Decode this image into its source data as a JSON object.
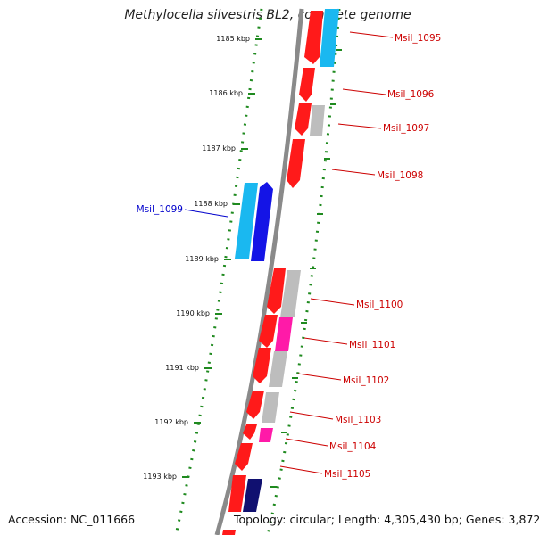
{
  "title": "Methylocella silvestris BL2, complete genome",
  "footer": {
    "accession": "Accession: NC_011666",
    "topology": "Topology: circular; Length: 4,305,430 bp; Genes: 3,872"
  },
  "colors": {
    "backbone": "#8a8a8a",
    "tick_dots": "#1f8a1f",
    "red_gene": "#ff1a1a",
    "cyan_gene": "#1ab8f0",
    "blue_gene": "#1414e6",
    "navy_gene": "#101070",
    "pink_gene": "#ff1aa8",
    "gray_gene": "#bdbdbd",
    "label_red": "#cc0000",
    "label_blue": "#0000cc"
  },
  "ticks": [
    {
      "label": "1185 kbp"
    },
    {
      "label": "1186 kbp"
    },
    {
      "label": "1187 kbp"
    },
    {
      "label": "1188 kbp"
    },
    {
      "label": "1189 kbp"
    },
    {
      "label": "1190 kbp"
    },
    {
      "label": "1191 kbp"
    },
    {
      "label": "1192 kbp"
    },
    {
      "label": "1193 kbp"
    }
  ],
  "gene_labels": [
    {
      "name": "Msil_1095",
      "color": "red"
    },
    {
      "name": "Msil_1096",
      "color": "red"
    },
    {
      "name": "Msil_1097",
      "color": "red"
    },
    {
      "name": "Msil_1098",
      "color": "red"
    },
    {
      "name": "Msil_1099",
      "color": "blue"
    },
    {
      "name": "Msil_1100",
      "color": "red"
    },
    {
      "name": "Msil_1101",
      "color": "red"
    },
    {
      "name": "Msil_1102",
      "color": "red"
    },
    {
      "name": "Msil_1103",
      "color": "red"
    },
    {
      "name": "Msil_1104",
      "color": "red"
    },
    {
      "name": "Msil_1105",
      "color": "red"
    }
  ]
}
